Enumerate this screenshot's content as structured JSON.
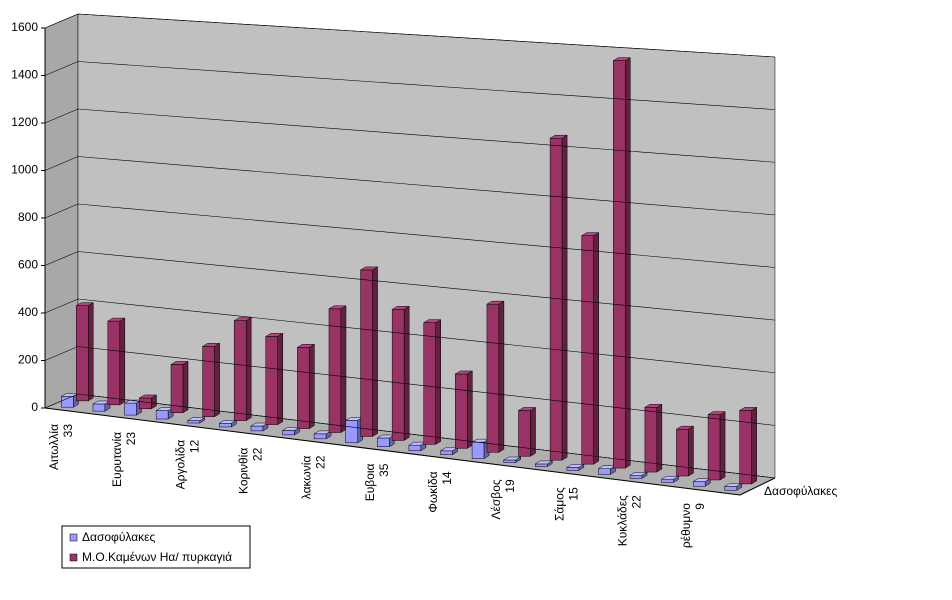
{
  "chart_data": {
    "type": "bar3d",
    "categories": [
      [
        "Αιτωλλία",
        "33"
      ],
      null,
      [
        "Ευρυτανία",
        "23"
      ],
      null,
      [
        "Αργολίδα",
        "12"
      ],
      null,
      [
        "Κορινθία",
        "22"
      ],
      null,
      [
        "λακωνία",
        "22"
      ],
      null,
      [
        "Ευβοια",
        "35"
      ],
      null,
      [
        "Φωκίδα",
        "14"
      ],
      null,
      [
        "Λέσβος",
        "19"
      ],
      null,
      [
        "Σάμος",
        "15"
      ],
      null,
      [
        "Κυκλάδες",
        "22"
      ],
      null,
      [
        "ρέθυμνο",
        "9"
      ],
      null
    ],
    "series": [
      {
        "name": "Δασοφύλακες",
        "color": "#9999ff",
        "values": [
          45,
          30,
          50,
          35,
          10,
          15,
          20,
          18,
          20,
          90,
          35,
          22,
          15,
          65,
          10,
          10,
          12,
          22,
          12,
          12,
          18,
          15
        ]
      },
      {
        "name": "Μ.Ο.Καμένων Ηα/ πυρκαγιά",
        "color": "#993366",
        "values": [
          400,
          350,
          45,
          200,
          290,
          410,
          360,
          330,
          500,
          670,
          525,
          485,
          295,
          585,
          180,
          1260,
          890,
          1580,
          250,
          180,
          250,
          280
        ]
      }
    ],
    "ylim": [
      0,
      1600
    ],
    "yticks": [
      0,
      200,
      400,
      600,
      800,
      1000,
      1200,
      1400,
      1600
    ],
    "grid": true
  }
}
